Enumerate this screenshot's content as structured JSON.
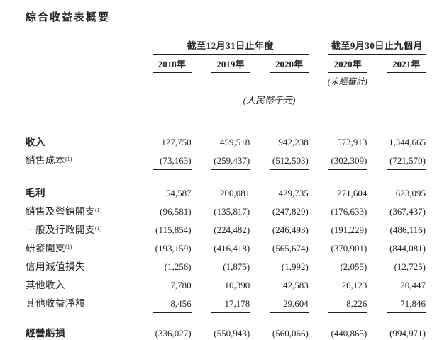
{
  "page": {
    "title": "綜合收益表概要",
    "background_color": "#ffffff",
    "text_color": "#242424",
    "rule_color": "#1f1f1f"
  },
  "table": {
    "col_groups": [
      {
        "label": "截至12月31日止年度"
      },
      {
        "label": "截至9月30日止九個月"
      }
    ],
    "year_headers": [
      "2018年",
      "2019年",
      "2020年",
      "2020年",
      "2021年"
    ],
    "unaudited_note": "(未經審計)",
    "currency_note": "(人民幣千元)",
    "rows": [
      {
        "label": "收入",
        "bold": true,
        "values": [
          "127,750",
          "459,518",
          "942,238",
          "573,913",
          "1,344,665"
        ]
      },
      {
        "label": "銷售成本",
        "sup": "(1)",
        "rule_below": true,
        "values": [
          "(73,163)",
          "(259,437)",
          "(512,503)",
          "(302,309)",
          "(721,570)"
        ]
      },
      {
        "label": "毛利",
        "bold": true,
        "values": [
          "54,587",
          "200,081",
          "429,735",
          "271,604",
          "623,095"
        ]
      },
      {
        "label": "銷售及營銷開支",
        "sup": "(1)",
        "values": [
          "(96,581)",
          "(135,817)",
          "(247,829)",
          "(176,633)",
          "(367,437)"
        ]
      },
      {
        "label": "一般及行政開支",
        "sup": "(1)",
        "values": [
          "(115,854)",
          "(224,482)",
          "(246,493)",
          "(191,229)",
          "(486,116)"
        ]
      },
      {
        "label": "研發開支",
        "sup": "(1)",
        "values": [
          "(193,159)",
          "(416,418)",
          "(565,674)",
          "(370,901)",
          "(844,081)"
        ]
      },
      {
        "label": "信用減值損失",
        "values": [
          "(1,256)",
          "(1,875)",
          "(1,992)",
          "(2,055)",
          "(12,725)"
        ]
      },
      {
        "label": "其他收入",
        "values": [
          "7,780",
          "10,390",
          "42,583",
          "20,123",
          "20,447"
        ]
      },
      {
        "label": "其他收益淨額",
        "rule_below": true,
        "values": [
          "8,456",
          "17,178",
          "29,604",
          "8,226",
          "71,846"
        ]
      },
      {
        "label": "經營虧損",
        "bold": true,
        "values": [
          "(336,027)",
          "(550,943)",
          "(560,066)",
          "(440,865)",
          "(994,971)"
        ]
      }
    ]
  }
}
